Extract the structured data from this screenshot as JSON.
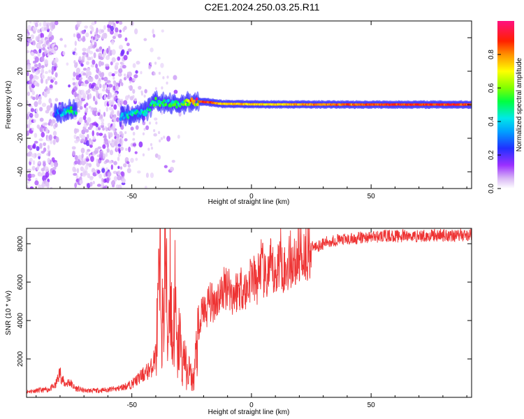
{
  "title": "C2E1.2024.250.03.25.R11",
  "chart_data": [
    {
      "type": "heatmap",
      "xlabel": "Height of straight line (km)",
      "ylabel": "Frequency (Hz)",
      "xlim": [
        -94,
        92
      ],
      "ylim": [
        -50,
        50
      ],
      "xticks": [
        -50,
        0,
        50
      ],
      "xtick_labels": [
        "-50",
        "0",
        "50"
      ],
      "yticks": [
        -40,
        -20,
        0,
        20,
        40
      ],
      "ytick_labels": [
        "-40",
        "-20",
        "0",
        "20",
        "40"
      ],
      "colorbar": {
        "label": "Normalized spectral amplitude",
        "range": [
          0,
          1
        ],
        "ticks": [
          0.0,
          0.2,
          0.4,
          0.6,
          0.8
        ],
        "tick_labels": [
          "0.0",
          "0.2",
          "0.4",
          "0.6",
          "0.8"
        ]
      },
      "ridge": [
        {
          "x": -80,
          "y": -5,
          "amp": 0.35
        },
        {
          "x": -78,
          "y": -4,
          "amp": 0.45
        },
        {
          "x": -76,
          "y": -3,
          "amp": 0.5
        },
        {
          "x": -53,
          "y": -7,
          "amp": 0.4
        },
        {
          "x": -48,
          "y": -5,
          "amp": 0.45
        },
        {
          "x": -44,
          "y": -4,
          "amp": 0.45
        },
        {
          "x": -40,
          "y": 2,
          "amp": 0.5
        },
        {
          "x": -36,
          "y": 1,
          "amp": 0.5
        },
        {
          "x": -32,
          "y": 0,
          "amp": 0.55
        },
        {
          "x": -28,
          "y": 1,
          "amp": 0.55
        },
        {
          "x": -24,
          "y": 2,
          "amp": 0.85
        },
        {
          "x": -18,
          "y": 1.5,
          "amp": 0.9
        },
        {
          "x": -12,
          "y": 0.5,
          "amp": 0.75
        },
        {
          "x": -6,
          "y": 0.5,
          "amp": 0.8
        },
        {
          "x": 0,
          "y": 0.3,
          "amp": 0.75
        },
        {
          "x": 10,
          "y": 0.2,
          "amp": 0.75
        },
        {
          "x": 20,
          "y": 0.2,
          "amp": 0.8
        },
        {
          "x": 40,
          "y": 0.1,
          "amp": 0.85
        },
        {
          "x": 60,
          "y": 0.1,
          "amp": 0.9
        },
        {
          "x": 80,
          "y": 0.1,
          "amp": 0.9
        },
        {
          "x": 92,
          "y": 0.1,
          "amp": 0.9
        }
      ]
    },
    {
      "type": "line",
      "xlabel": "Height of straight line (km)",
      "ylabel": "SNR (10 * v/v)",
      "xlim": [
        -94,
        92
      ],
      "ylim": [
        0,
        8800
      ],
      "xticks": [
        -50,
        0,
        50
      ],
      "xtick_labels": [
        "-50",
        "0",
        "50"
      ],
      "yticks": [
        2000,
        4000,
        6000,
        8000
      ],
      "ytick_labels": [
        "2000",
        "4000",
        "6000",
        "8000"
      ],
      "color": "#ee3333",
      "series": [
        {
          "x": [
            -94,
            -90,
            -85,
            -82,
            -80,
            -79,
            -78,
            -76,
            -74,
            -70,
            -65,
            -60,
            -56,
            -52,
            -50,
            -48,
            -45,
            -42,
            -40,
            -38,
            -37,
            -36,
            -35,
            -34,
            -33,
            -32,
            -31,
            -30,
            -29,
            -28,
            -27,
            -26,
            -25,
            -24,
            -23,
            -22,
            -21,
            -20,
            -19,
            -18,
            -16,
            -14,
            -12,
            -10,
            -8,
            -6,
            -4,
            -2,
            0,
            2,
            4,
            6,
            8,
            10,
            12,
            14,
            16,
            18,
            20,
            22,
            25,
            28,
            32,
            36,
            40,
            45,
            50,
            55,
            60,
            70,
            80,
            92
          ],
          "y": [
            300,
            350,
            400,
            600,
            1300,
            900,
            700,
            800,
            500,
            350,
            350,
            400,
            450,
            600,
            700,
            900,
            1200,
            1500,
            2200,
            6500,
            3000,
            8300,
            2500,
            7000,
            2200,
            5200,
            1800,
            3500,
            1400,
            2500,
            1000,
            1500,
            900,
            1000,
            2500,
            3000,
            4200,
            4700,
            4300,
            5000,
            4900,
            5200,
            5500,
            6000,
            5300,
            5600,
            5800,
            5500,
            6500,
            5800,
            7000,
            6000,
            6800,
            6200,
            7500,
            6500,
            7200,
            7000,
            7500,
            7500,
            7800,
            7900,
            8100,
            8200,
            8200,
            8300,
            8350,
            8400,
            8400,
            8400,
            8450,
            8450
          ]
        }
      ]
    }
  ]
}
